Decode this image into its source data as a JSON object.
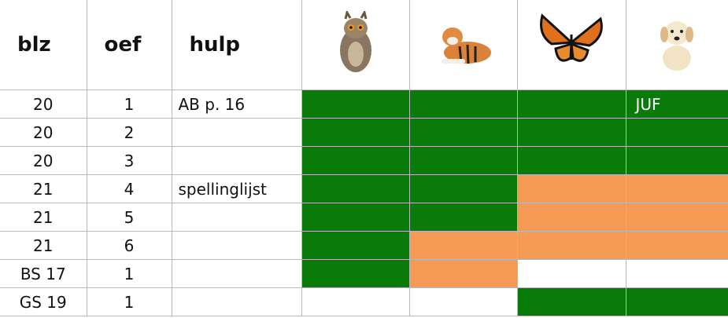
{
  "header": {
    "blz": "blz",
    "oef": "oef",
    "hulp": "hulp"
  },
  "rows": [
    {
      "blz": "20",
      "oef": "1",
      "hulp": "AB p. 16",
      "cells": [
        {
          "color": "#0a7b0a"
        },
        {
          "color": "#0a7b0a"
        },
        {
          "color": "#0a7b0a"
        },
        {
          "color": "#0a7b0a",
          "label": "JUF"
        }
      ]
    },
    {
      "blz": "20",
      "oef": "2",
      "cells": [
        {
          "color": "#0a7b0a"
        },
        {
          "color": "#0a7b0a"
        },
        {
          "color": "#0a7b0a"
        },
        {
          "color": "#0a7b0a"
        }
      ]
    },
    {
      "blz": "20",
      "oef": "3",
      "cells": [
        {
          "color": "#0a7b0a"
        },
        {
          "color": "#0a7b0a"
        },
        {
          "color": "#0a7b0a"
        },
        {
          "color": "#0a7b0a"
        }
      ]
    },
    {
      "blz": "21",
      "oef": "4",
      "hulp": "spellinglijst",
      "cells": [
        {
          "color": "#0a7b0a"
        },
        {
          "color": "#0a7b0a"
        },
        {
          "color": "#f59a55"
        },
        {
          "color": "#f59a55"
        }
      ]
    },
    {
      "blz": "21",
      "oef": "5",
      "cells": [
        {
          "color": "#0a7b0a"
        },
        {
          "color": "#0a7b0a"
        },
        {
          "color": "#f59a55"
        },
        {
          "color": "#f59a55"
        }
      ]
    },
    {
      "blz": "21",
      "oef": "6",
      "cells": [
        {
          "color": "#0a7b0a"
        },
        {
          "color": "#f59a55"
        },
        {
          "color": "#f59a55"
        },
        {
          "color": "#f59a55"
        }
      ]
    },
    {
      "blz": "BS 17",
      "oef": "1",
      "cells": [
        {
          "color": "#0a7b0a"
        },
        {
          "color": "#f59a55"
        },
        {
          "color": "#ffffff"
        },
        {
          "color": "#ffffff"
        }
      ]
    },
    {
      "blz": "GS 19",
      "oef": "1",
      "cells": [
        {
          "color": "#ffffff"
        },
        {
          "color": "#ffffff"
        },
        {
          "color": "#0a7b0a"
        },
        {
          "color": "#0a7b0a"
        }
      ]
    }
  ]
}
